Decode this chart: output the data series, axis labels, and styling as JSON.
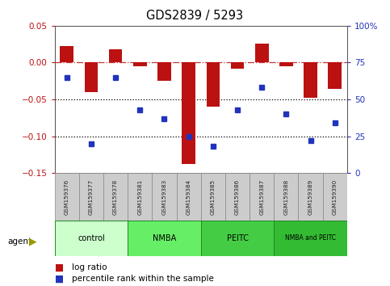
{
  "title": "GDS2839 / 5293",
  "samples": [
    "GSM159376",
    "GSM159377",
    "GSM159378",
    "GSM159381",
    "GSM159383",
    "GSM159384",
    "GSM159385",
    "GSM159386",
    "GSM159387",
    "GSM159388",
    "GSM159389",
    "GSM159390"
  ],
  "log_ratio": [
    0.022,
    -0.04,
    0.018,
    -0.005,
    -0.025,
    -0.138,
    -0.06,
    -0.008,
    0.026,
    -0.005,
    -0.048,
    -0.036
  ],
  "percentile_pct": [
    65,
    20,
    65,
    43,
    37,
    25,
    18,
    43,
    58,
    40,
    22,
    34
  ],
  "groups": [
    {
      "label": "control",
      "start": 0,
      "end": 3,
      "color": "#ccffcc"
    },
    {
      "label": "NMBA",
      "start": 3,
      "end": 6,
      "color": "#66ee66"
    },
    {
      "label": "PEITC",
      "start": 6,
      "end": 9,
      "color": "#44cc44"
    },
    {
      "label": "NMBA and PEITC",
      "start": 9,
      "end": 12,
      "color": "#33bb33"
    }
  ],
  "bar_color": "#bb1111",
  "dot_color": "#2233bb",
  "ylim_left": [
    -0.15,
    0.05
  ],
  "ylim_right": [
    0,
    100
  ],
  "yticks_left": [
    -0.15,
    -0.1,
    -0.05,
    0,
    0.05
  ],
  "yticks_right": [
    0,
    25,
    50,
    75,
    100
  ],
  "dotline1": -0.05,
  "dotline2": -0.1,
  "bar_width": 0.55,
  "fig_width": 4.83,
  "fig_height": 3.54,
  "dpi": 100
}
